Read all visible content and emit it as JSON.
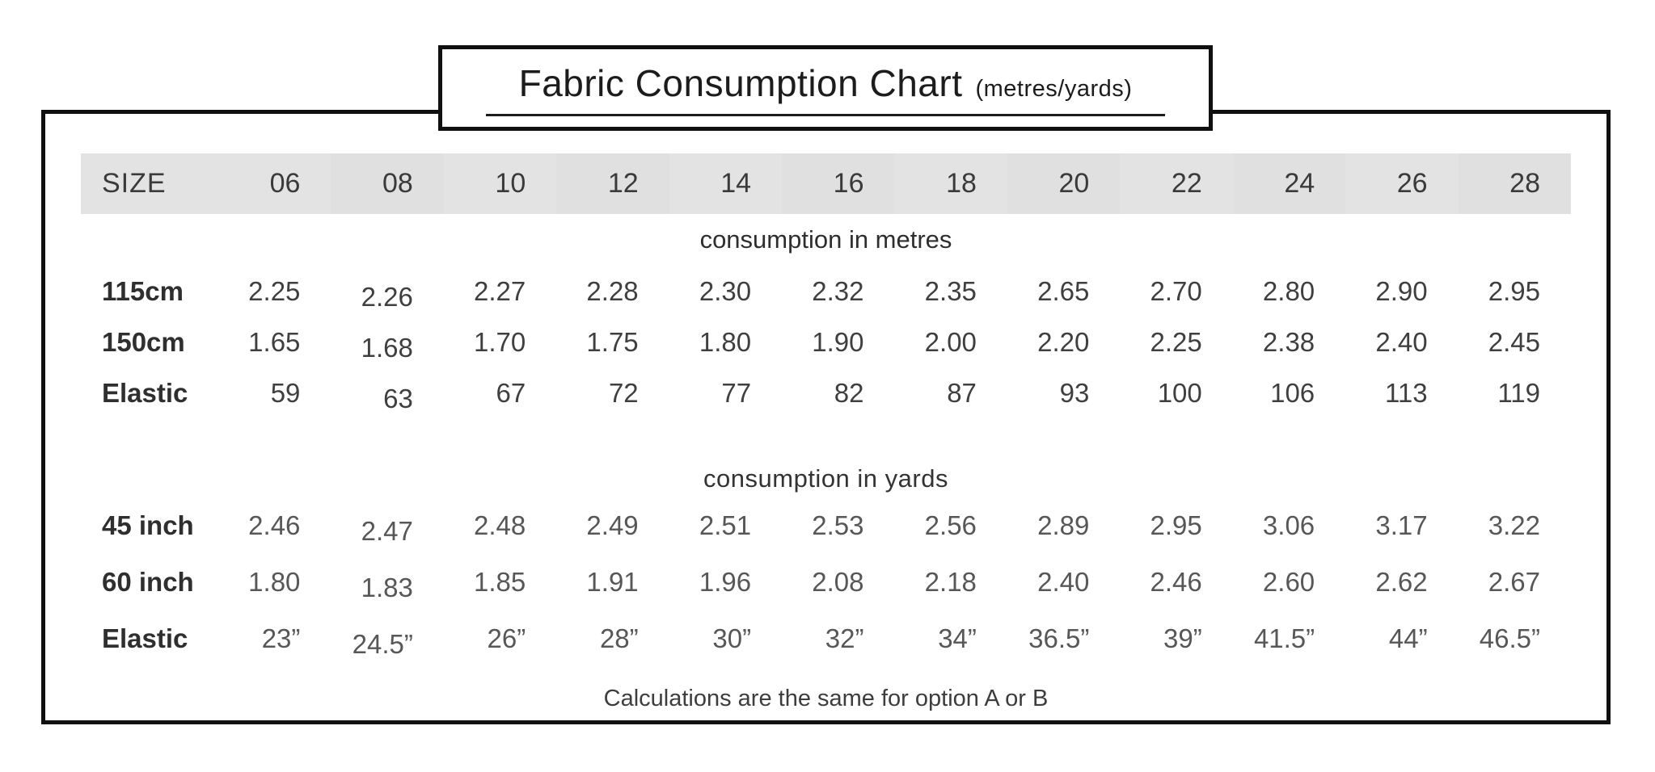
{
  "title": {
    "main": "Fabric Consumption Chart",
    "suffix": "(metres/yards)"
  },
  "table": {
    "size_header_label": "SIZE",
    "sizes": [
      "06",
      "08",
      "10",
      "12",
      "14",
      "16",
      "18",
      "20",
      "22",
      "24",
      "26",
      "28"
    ],
    "sections": [
      {
        "id": "metres",
        "label": "consumption in metres",
        "rows": [
          {
            "label": "115cm",
            "values": [
              "2.25",
              "2.26",
              "2.27",
              "2.28",
              "2.30",
              "2.32",
              "2.35",
              "2.65",
              "2.70",
              "2.80",
              "2.90",
              "2.95"
            ]
          },
          {
            "label": "150cm",
            "values": [
              "1.65",
              "1.68",
              "1.70",
              "1.75",
              "1.80",
              "1.90",
              "2.00",
              "2.20",
              "2.25",
              "2.38",
              "2.40",
              "2.45"
            ]
          },
          {
            "label": "Elastic",
            "values": [
              "59",
              "63",
              "67",
              "72",
              "77",
              "82",
              "87",
              "93",
              "100",
              "106",
              "113",
              "119"
            ]
          }
        ]
      },
      {
        "id": "yards",
        "label": "consumption in yards",
        "rows": [
          {
            "label": "45 inch",
            "values": [
              "2.46",
              "2.47",
              "2.48",
              "2.49",
              "2.51",
              "2.53",
              "2.56",
              "2.89",
              "2.95",
              "3.06",
              "3.17",
              "3.22"
            ]
          },
          {
            "label": "60 inch",
            "values": [
              "1.80",
              "1.83",
              "1.85",
              "1.91",
              "1.96",
              "2.08",
              "2.18",
              "2.40",
              "2.46",
              "2.60",
              "2.62",
              "2.67"
            ]
          },
          {
            "label": "Elastic",
            "values": [
              "23”",
              "24.5”",
              "26”",
              "28”",
              "30”",
              "32”",
              "34”",
              "36.5”",
              "39”",
              "41.5”",
              "44”",
              "46.5”"
            ]
          }
        ]
      }
    ],
    "footnote": "Calculations are the same for option A or B"
  },
  "colors": {
    "border": "#101010",
    "header_band": "#e3e3e3",
    "header_band_alt": "#e0e0e0",
    "text_primary": "#2f2f2f",
    "text_yards": "#575757"
  }
}
